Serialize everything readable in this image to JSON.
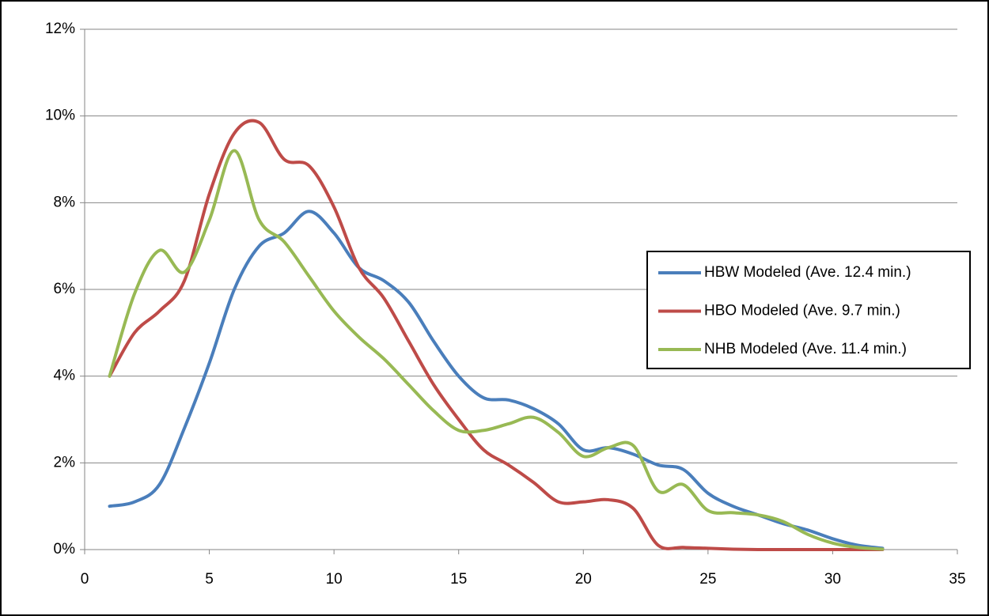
{
  "chart_data": {
    "type": "line",
    "x": [
      1,
      2,
      3,
      4,
      5,
      6,
      7,
      8,
      9,
      10,
      11,
      12,
      13,
      14,
      15,
      16,
      17,
      18,
      19,
      20,
      21,
      22,
      23,
      24,
      25,
      26,
      27,
      28,
      29,
      30,
      31,
      32
    ],
    "series": [
      {
        "name": "HBW Modeled (Ave. 12.4 min.)",
        "color": "#4a7ebb",
        "values": [
          1.0,
          1.1,
          1.5,
          2.8,
          4.3,
          6.0,
          7.0,
          7.3,
          7.8,
          7.3,
          6.5,
          6.2,
          5.7,
          4.8,
          4.0,
          3.5,
          3.45,
          3.25,
          2.9,
          2.3,
          2.35,
          2.2,
          1.95,
          1.85,
          1.3,
          1.0,
          0.8,
          0.6,
          0.45,
          0.25,
          0.1,
          0.03
        ]
      },
      {
        "name": "HBO Modeled (Ave. 9.7 min.)",
        "color": "#be4b48",
        "values": [
          4.0,
          5.0,
          5.5,
          6.2,
          8.2,
          9.6,
          9.85,
          9.0,
          8.85,
          7.9,
          6.5,
          5.8,
          4.8,
          3.8,
          3.0,
          2.3,
          1.95,
          1.55,
          1.1,
          1.1,
          1.15,
          0.95,
          0.1,
          0.05,
          0.03,
          0.01,
          0,
          0,
          0,
          0,
          0,
          0
        ]
      },
      {
        "name": "NHB Modeled (Ave. 11.4 min.)",
        "color": "#98b954",
        "values": [
          4.0,
          5.9,
          6.9,
          6.4,
          7.6,
          9.2,
          7.6,
          7.1,
          6.3,
          5.5,
          4.9,
          4.4,
          3.8,
          3.2,
          2.75,
          2.75,
          2.9,
          3.05,
          2.7,
          2.15,
          2.35,
          2.4,
          1.35,
          1.5,
          0.9,
          0.85,
          0.8,
          0.65,
          0.35,
          0.15,
          0.05,
          0.01
        ]
      }
    ],
    "xlim": [
      0,
      35
    ],
    "xticks": [
      0,
      5,
      10,
      15,
      20,
      25,
      30,
      35
    ],
    "ylim": [
      0,
      12
    ],
    "yticks": [
      {
        "value": 0,
        "label": "0%"
      },
      {
        "value": 2,
        "label": "2%"
      },
      {
        "value": 4,
        "label": "4%"
      },
      {
        "value": 6,
        "label": "6%"
      },
      {
        "value": 8,
        "label": "8%"
      },
      {
        "value": 10,
        "label": "10%"
      },
      {
        "value": 12,
        "label": "12%"
      }
    ],
    "grid": true,
    "legend": "right"
  }
}
